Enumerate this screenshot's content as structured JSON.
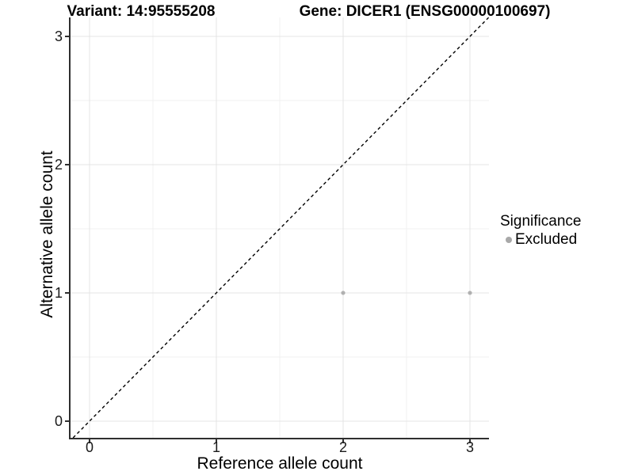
{
  "chart_data": {
    "type": "scatter",
    "title_left": "Variant: 14:95555208",
    "title_right": "Gene: DICER1 (ENSG00000100697)",
    "xlabel": "Reference allele count",
    "ylabel": "Alternative allele count",
    "x_ticks": [
      0,
      1,
      2,
      3
    ],
    "y_ticks": [
      0,
      1,
      2,
      3
    ],
    "xlim": [
      -0.15,
      3.15
    ],
    "ylim": [
      -0.13,
      3.148
    ],
    "grid": {
      "major": true,
      "minor": true
    },
    "series": [
      {
        "name": "Excluded",
        "points": [
          {
            "x": 2,
            "y": 1
          },
          {
            "x": 3,
            "y": 1
          }
        ]
      }
    ],
    "abline": {
      "type": "identity",
      "slope": 1,
      "intercept": 0,
      "style": "dashed"
    },
    "legend": {
      "title": "Significance",
      "position": "right",
      "entries": [
        {
          "label": "Excluded"
        }
      ]
    }
  },
  "colors": {
    "background": "#ffffff",
    "grid_major": "#e4e4e4",
    "grid_minor": "#f1f1f1",
    "axis_line": "#2f2f2f",
    "point": "#b0b0b0",
    "dashed_line": "#000000",
    "legend_key": "#a8a8a8"
  }
}
